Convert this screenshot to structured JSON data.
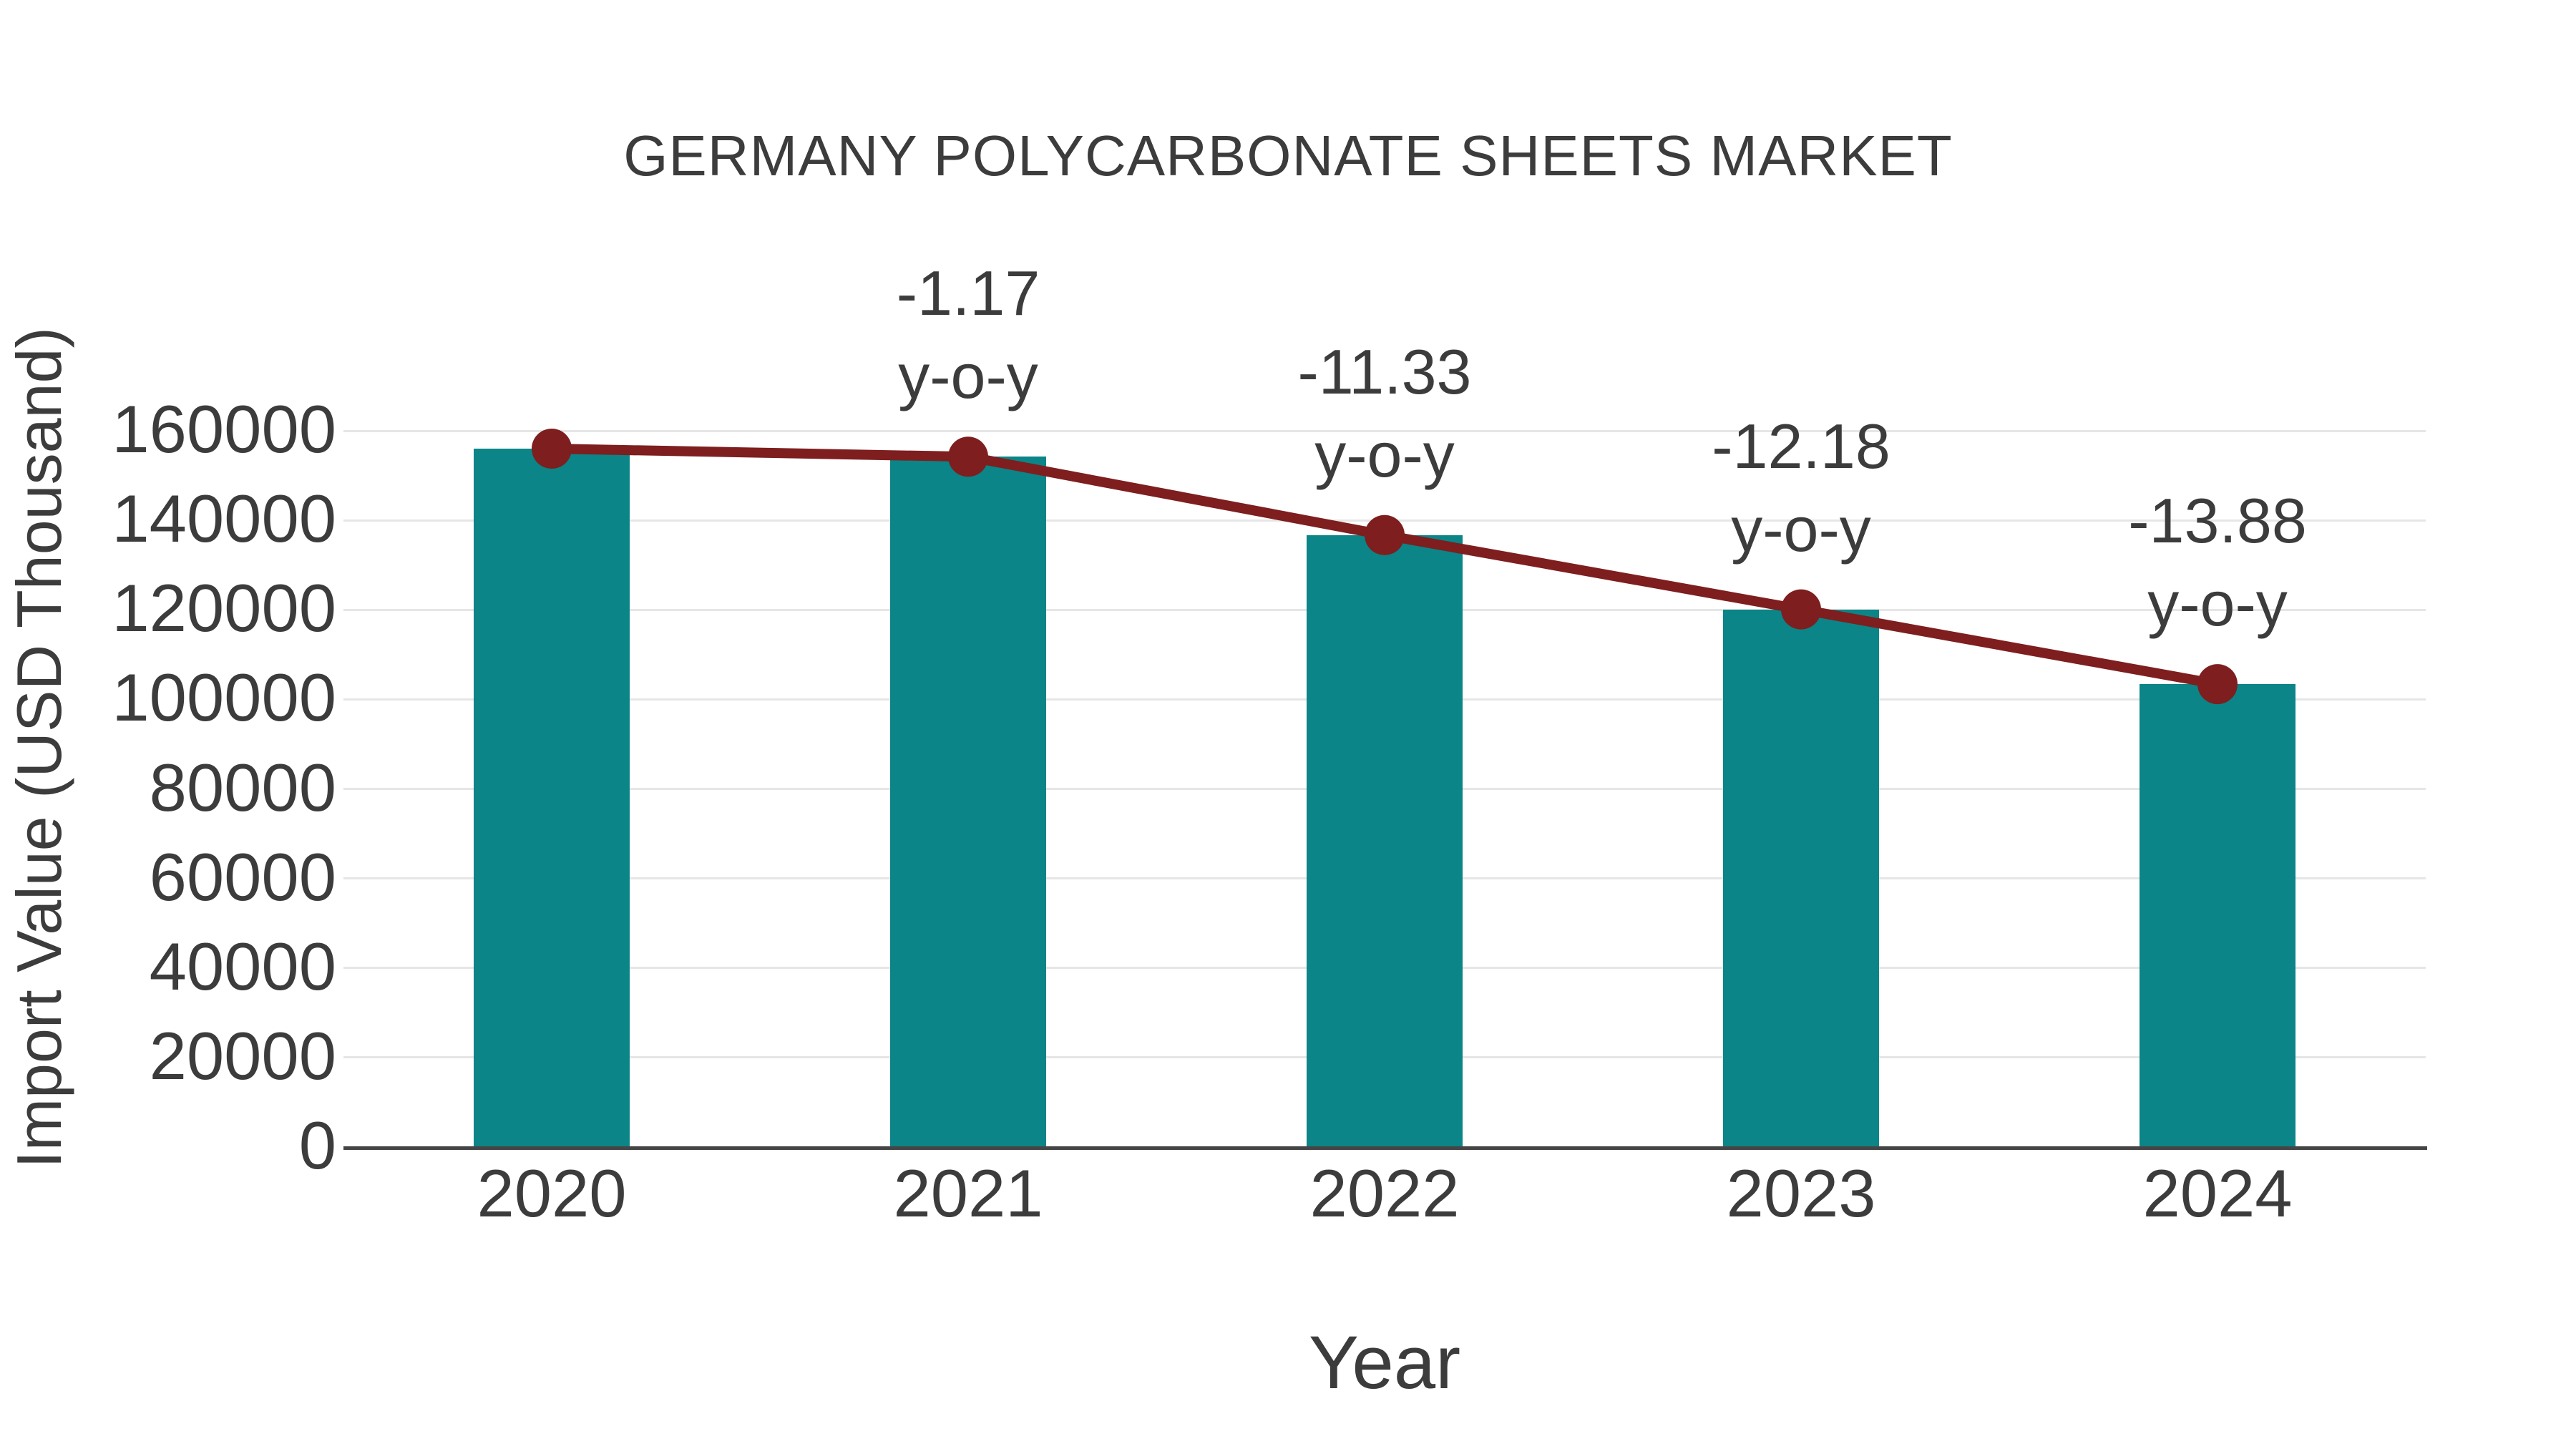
{
  "chart_data": {
    "type": "bar",
    "title": "GERMANY POLYCARBONATE SHEETS MARKET",
    "xlabel": "Year",
    "ylabel": "Import Value (USD Thousand)",
    "categories": [
      "2020",
      "2021",
      "2022",
      "2023",
      "2024"
    ],
    "series": [
      {
        "name": "Import Value (USD Thousand)",
        "type": "bar",
        "values": [
          156000,
          154200,
          136700,
          120100,
          103400
        ]
      },
      {
        "name": "y-o-y change (%)",
        "type": "line",
        "values": [
          null,
          -1.17,
          -11.33,
          -12.18,
          -13.88
        ]
      }
    ],
    "annotations": [
      {
        "category": "2021",
        "line1": "-1.17",
        "line2": "y-o-y"
      },
      {
        "category": "2022",
        "line1": "-11.33",
        "line2": "y-o-y"
      },
      {
        "category": "2023",
        "line1": "-12.18",
        "line2": "y-o-y"
      },
      {
        "category": "2024",
        "line1": "-13.88",
        "line2": "y-o-y"
      }
    ],
    "y_ticks": [
      0,
      20000,
      40000,
      60000,
      80000,
      100000,
      120000,
      140000,
      160000
    ],
    "ylim": [
      0,
      160000
    ],
    "grid": true,
    "legend_position": "none",
    "colors": {
      "bar": "#0b8587",
      "line": "#7e1e1e",
      "marker": "#7e1e1e",
      "text": "#3c3c3c",
      "grid": "#e6e6e6",
      "axis": "#454545",
      "background": "#ffffff"
    }
  }
}
